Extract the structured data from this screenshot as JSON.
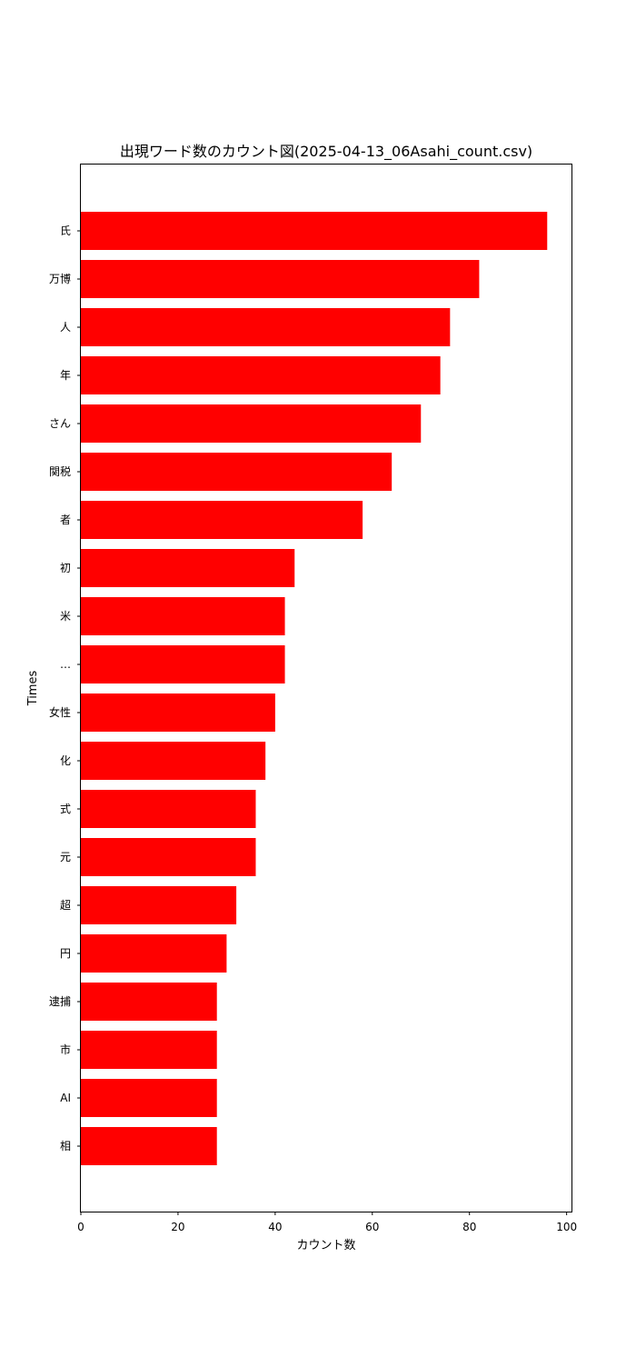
{
  "chart_data": {
    "type": "bar",
    "orientation": "horizontal",
    "title": "出現ワード数のカウント図(2025-04-13_06Asahi_count.csv)",
    "xlabel": "カウント数",
    "ylabel": "Times",
    "xlim": [
      0,
      101
    ],
    "x_ticks": [
      0,
      20,
      40,
      60,
      80,
      100
    ],
    "grid": false,
    "bar_color": "#ff0000",
    "categories": [
      "氏",
      "万博",
      "人",
      "年",
      "さん",
      "関税",
      "者",
      "初",
      "米",
      "…",
      "女性",
      "化",
      "式",
      "元",
      "超",
      "円",
      "逮捕",
      "市",
      "AI",
      "相"
    ],
    "values": [
      96,
      82,
      76,
      74,
      70,
      64,
      58,
      44,
      42,
      42,
      40,
      38,
      36,
      36,
      32,
      30,
      28,
      28,
      28,
      28
    ]
  }
}
